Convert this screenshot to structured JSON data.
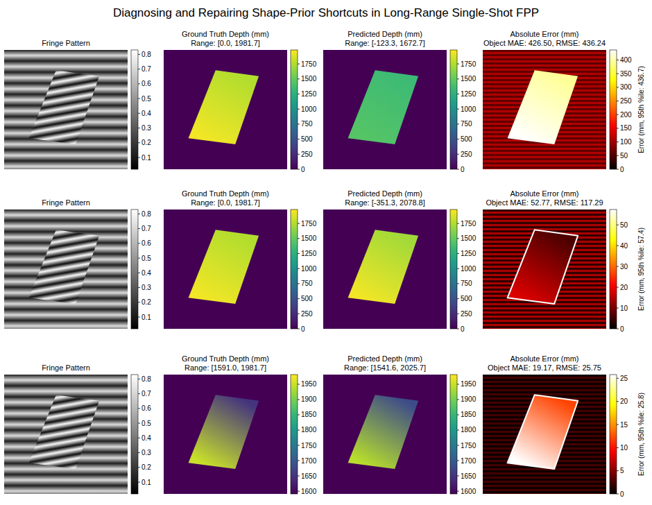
{
  "title": "Diagnosing and Repairing Shape-Prior Shortcuts in Long-Range Single-Shot FPP",
  "chart_data": [
    {
      "type": "fringe",
      "title": "Fringe Pattern",
      "color": "gray",
      "colorbar": {
        "range": [
          0.02,
          0.83
        ],
        "ticks": [
          0.1,
          0.2,
          0.3,
          0.4,
          0.5,
          0.6,
          0.7,
          0.8
        ]
      },
      "background_values": [
        0.12,
        0.72
      ],
      "object_values": [
        0.05,
        0.82
      ]
    },
    {
      "type": "heatmap",
      "title": "Ground Truth Depth (mm)",
      "subtitle": "Range: [0.0, 1981.7]",
      "color": "viridis",
      "colorbar": {
        "range": [
          0,
          1981.7
        ],
        "ticks": [
          0,
          250,
          500,
          750,
          1000,
          1250,
          1500,
          1750
        ]
      },
      "background_values": [
        0
      ],
      "object_values": [
        1750,
        1950
      ]
    },
    {
      "type": "heatmap",
      "title": "Predicted Depth (mm)",
      "subtitle": "Range: [-123.3, 1672.7]",
      "color": "viridis",
      "colorbar": {
        "range": [
          0,
          1981.7
        ],
        "ticks": [
          0,
          250,
          500,
          750,
          1000,
          1250,
          1500,
          1750
        ]
      },
      "background_values": [
        0
      ],
      "object_values": [
        1350,
        1450
      ]
    },
    {
      "type": "heatmap",
      "title": "Absolute Error (mm)",
      "subtitle": "Object MAE: 426.50, RMSE: 436.24",
      "color": "hot",
      "colorbar": {
        "range": [
          0,
          436.7
        ],
        "ticks": [
          0,
          50,
          100,
          150,
          200,
          250,
          300,
          350,
          400
        ],
        "label": "Error (mm, 95th %ile: 436.7)"
      },
      "background_values": [
        60,
        110
      ],
      "object_values": [
        390,
        436.7
      ]
    },
    {
      "type": "fringe",
      "title": "Fringe Pattern",
      "color": "gray",
      "colorbar": {
        "range": [
          0.02,
          0.83
        ],
        "ticks": [
          0.1,
          0.2,
          0.3,
          0.4,
          0.5,
          0.6,
          0.7,
          0.8
        ]
      },
      "background_values": [
        0.12,
        0.72
      ],
      "object_values": [
        0.05,
        0.82
      ]
    },
    {
      "type": "heatmap",
      "title": "Ground Truth Depth (mm)",
      "subtitle": "Range: [0.0, 1981.7]",
      "color": "viridis",
      "colorbar": {
        "range": [
          0,
          1981.7
        ],
        "ticks": [
          0,
          250,
          500,
          750,
          1000,
          1250,
          1500,
          1750
        ]
      },
      "background_values": [
        0
      ],
      "object_values": [
        1750,
        1950
      ]
    },
    {
      "type": "heatmap",
      "title": "Predicted Depth (mm)",
      "subtitle": "Range: [-351.3, 2078.8]",
      "color": "viridis",
      "colorbar": {
        "range": [
          0,
          1981.7
        ],
        "ticks": [
          0,
          250,
          500,
          750,
          1000,
          1250,
          1500,
          1750
        ]
      },
      "background_values": [
        0
      ],
      "object_values": [
        1700,
        1950
      ]
    },
    {
      "type": "heatmap",
      "title": "Absolute Error (mm)",
      "subtitle": "Object MAE: 52.77, RMSE: 117.29",
      "color": "hot",
      "colorbar": {
        "range": [
          0,
          57.4
        ],
        "ticks": [
          0,
          10,
          20,
          30,
          40,
          50
        ],
        "label": "Error (mm, 95th %ile: 57.4)"
      },
      "background_values": [
        4,
        14
      ],
      "object_values": [
        6,
        18
      ],
      "edge_value": 57.4
    },
    {
      "type": "fringe",
      "title": "Fringe Pattern",
      "color": "gray",
      "colorbar": {
        "range": [
          0.02,
          0.83
        ],
        "ticks": [
          0.1,
          0.2,
          0.3,
          0.4,
          0.5,
          0.6,
          0.7,
          0.8
        ]
      },
      "background_values": [
        0.12,
        0.72
      ],
      "object_values": [
        0.05,
        0.82
      ]
    },
    {
      "type": "heatmap",
      "title": "Ground Truth Depth (mm)",
      "subtitle": "Range: [1591.0, 1981.7]",
      "color": "viridis",
      "colorbar": {
        "range": [
          1591.0,
          1981.7
        ],
        "ticks": [
          1600,
          1650,
          1700,
          1750,
          1800,
          1850,
          1900,
          1950
        ]
      },
      "background_values": [
        1591.0
      ],
      "object_values": [
        1650,
        1950
      ]
    },
    {
      "type": "heatmap",
      "title": "Predicted Depth (mm)",
      "subtitle": "Range: [1541.6, 2025.7]",
      "color": "viridis",
      "colorbar": {
        "range": [
          1591.0,
          1981.7
        ],
        "ticks": [
          1600,
          1650,
          1700,
          1750,
          1800,
          1850,
          1900,
          1950
        ]
      },
      "background_values": [
        1591.0
      ],
      "object_values": [
        1680,
        1940
      ]
    },
    {
      "type": "heatmap",
      "title": "Absolute Error (mm)",
      "subtitle": "Object MAE: 19.17, RMSE: 25.75",
      "color": "hot",
      "colorbar": {
        "range": [
          0,
          25.8
        ],
        "ticks": [
          0,
          5,
          10,
          15,
          20,
          25
        ],
        "label": "Error (mm, 95th %ile: 25.8)"
      },
      "background_values": [
        0.5,
        2.5
      ],
      "object_values": [
        12,
        25.8
      ],
      "edge_value": 25.8
    }
  ]
}
